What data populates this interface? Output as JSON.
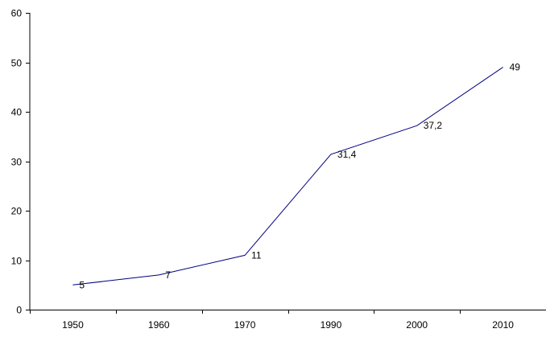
{
  "chart_data": {
    "type": "line",
    "title": "",
    "xlabel": "",
    "ylabel": "",
    "categories": [
      "1950",
      "1960",
      "1970",
      "1990",
      "2000",
      "2010"
    ],
    "series": [
      {
        "values": [
          5,
          7,
          11,
          31.4,
          37.2,
          49
        ],
        "value_labels": [
          "5",
          "7",
          "11",
          "31,4",
          "37,2",
          "49"
        ],
        "color": "#000080"
      }
    ],
    "ylim": [
      0,
      60
    ],
    "yticks": [
      0,
      10,
      20,
      30,
      40,
      50,
      60
    ],
    "grid": false,
    "legend": "none"
  }
}
